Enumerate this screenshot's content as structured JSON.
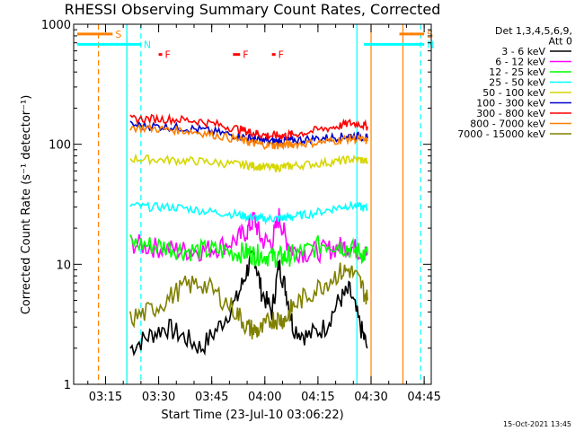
{
  "chart_data": {
    "type": "line",
    "title": "RHESSI Observing Summary Count Rates, Corrected",
    "xlabel": "Start Time (23-Jul-10 03:06:22)",
    "ylabel": "Corrected Count Rate (s⁻¹ detector⁻¹)",
    "footer": "15-Oct-2021 13:45",
    "x_unit": "time of day (hh:mm), 23-Jul-10",
    "xlim": [
      "03:06",
      "04:47"
    ],
    "ylim": [
      1,
      1000
    ],
    "yscale": "log",
    "x_ticks": [
      "03:15",
      "03:30",
      "03:45",
      "04:00",
      "04:15",
      "04:30",
      "04:45"
    ],
    "y_ticks": [
      {
        "value": 1,
        "label": "1"
      },
      {
        "value": 10,
        "label": "10"
      },
      {
        "value": 100,
        "label": "100"
      },
      {
        "value": 1000,
        "label": "1000"
      }
    ],
    "legend": {
      "placement": "right",
      "header": [
        "Det 1,3,4,5,6,9,",
        "Att 0"
      ]
    },
    "x": [
      "03:22",
      "03:27",
      "03:32",
      "03:37",
      "03:42",
      "03:47",
      "03:52",
      "03:55",
      "03:57",
      "03:59",
      "04:02",
      "04:04",
      "04:06",
      "04:08",
      "04:12",
      "04:17",
      "04:21",
      "04:24",
      "04:27",
      "04:29"
    ],
    "series": [
      {
        "name": "3 - 6 keV",
        "color": "#000000",
        "values": [
          2,
          2.5,
          3,
          2.5,
          2,
          3,
          5,
          9,
          12,
          6,
          4,
          10,
          6,
          3,
          2.5,
          3,
          5,
          6,
          3,
          2
        ]
      },
      {
        "name": "6 - 12 keV",
        "color": "#ff00ff",
        "values": [
          15,
          14,
          13.5,
          13,
          13,
          14,
          16,
          19,
          24,
          16,
          15,
          25,
          16,
          13,
          12.5,
          13,
          14,
          14,
          13,
          12
        ]
      },
      {
        "name": "12 - 25 keV",
        "color": "#00ff00",
        "values": [
          15,
          14.5,
          14,
          13,
          13,
          13,
          12.5,
          12.5,
          12,
          12,
          11.5,
          11.5,
          11.5,
          12,
          13,
          15,
          14.5,
          13.5,
          12.5,
          12
        ]
      },
      {
        "name": "25 - 50 keV",
        "color": "#00ffff",
        "values": [
          31,
          30,
          30,
          29.5,
          28,
          27,
          26,
          25,
          24.5,
          24,
          24,
          24,
          24.5,
          25,
          26,
          28,
          30,
          31,
          30,
          29
        ]
      },
      {
        "name": "50 - 100 keV",
        "color": "#d6d600",
        "values": [
          76,
          75,
          74,
          73,
          72,
          70,
          68,
          67,
          66,
          65,
          64,
          64,
          65,
          66,
          68,
          70,
          72,
          75,
          74,
          72
        ]
      },
      {
        "name": "100 - 300 keV",
        "color": "#0000cc",
        "values": [
          145,
          142,
          140,
          137,
          132,
          125,
          118,
          113,
          110,
          108,
          106,
          106,
          107,
          108,
          110,
          113,
          115,
          118,
          116,
          112
        ]
      },
      {
        "name": "300 - 800 keV",
        "color": "#ff0000",
        "values": [
          162,
          163,
          162,
          160,
          155,
          145,
          135,
          128,
          124,
          120,
          118,
          118,
          119,
          121,
          126,
          135,
          142,
          150,
          147,
          140
        ]
      },
      {
        "name": "800 - 7000 keV",
        "color": "#ff8000",
        "values": [
          138,
          136,
          133,
          130,
          125,
          118,
          110,
          105,
          102,
          100,
          98,
          98,
          99,
          100,
          102,
          105,
          108,
          112,
          110,
          106
        ]
      },
      {
        "name": "7000 - 15000 keV",
        "color": "#808000",
        "values": [
          3.5,
          4,
          5,
          6.5,
          7,
          5.5,
          4,
          3,
          2.8,
          2.8,
          3.5,
          3.5,
          3.5,
          4.5,
          5.5,
          7,
          8.5,
          9,
          7,
          5
        ]
      }
    ],
    "annotations": [
      {
        "label": "S",
        "color": "#ff8000",
        "y": 830,
        "from": "03:07",
        "to": "03:17"
      },
      {
        "label": "S",
        "color": "#ff8000",
        "y": 830,
        "from": "04:38",
        "to": "04:45"
      },
      {
        "label": "N",
        "color": "#00ffff",
        "y": 680,
        "from": "03:07",
        "to": "03:25"
      },
      {
        "label": "N",
        "color": "#00ffff",
        "y": 680,
        "from": "04:28",
        "to": "04:45"
      },
      {
        "label": "F",
        "color": "#ff0000",
        "y": 560,
        "from": "03:30",
        "to": "03:31"
      },
      {
        "label": "F",
        "color": "#ff0000",
        "y": 560,
        "from": "03:51",
        "to": "03:53"
      },
      {
        "label": "F",
        "color": "#ff0000",
        "y": 560,
        "from": "04:02",
        "to": "04:03"
      }
    ],
    "vertical_lines": [
      {
        "x": "03:13",
        "color": "#ff8000",
        "style": "dashed"
      },
      {
        "x": "03:21",
        "color": "#ff8000",
        "style": "solid"
      },
      {
        "x": "03:21",
        "color": "#00ffff",
        "style": "solid"
      },
      {
        "x": "03:25",
        "color": "#00ffff",
        "style": "dashed"
      },
      {
        "x": "04:26",
        "color": "#00ffff",
        "style": "solid"
      },
      {
        "x": "04:30",
        "color": "#ff8000",
        "style": "solid"
      },
      {
        "x": "04:39",
        "color": "#ff8000",
        "style": "solid"
      },
      {
        "x": "04:44",
        "color": "#00ffff",
        "style": "dashed"
      }
    ]
  }
}
